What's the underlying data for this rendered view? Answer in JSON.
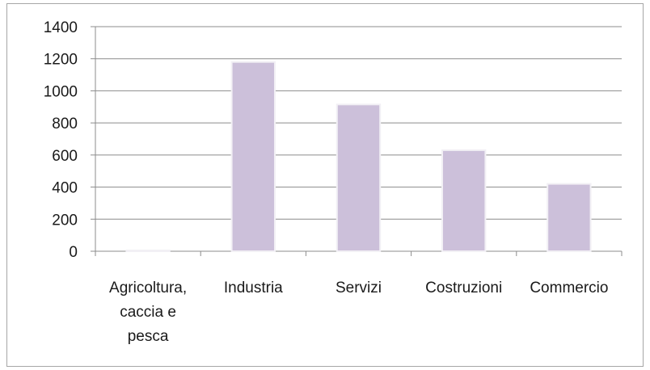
{
  "chart_data": {
    "type": "bar",
    "categories": [
      "Agricoltura, caccia e pesca",
      "Industria",
      "Servizi",
      "Costruzioni",
      "Commercio"
    ],
    "category_lines": [
      [
        "Agricoltura,",
        "caccia e",
        "pesca"
      ],
      [
        "Industria"
      ],
      [
        "Servizi"
      ],
      [
        "Costruzioni"
      ],
      [
        "Commercio"
      ]
    ],
    "values": [
      5,
      1180,
      915,
      630,
      420
    ],
    "ylim": [
      0,
      1400
    ],
    "yticks": [
      "0",
      "200",
      "400",
      "600",
      "800",
      "1000",
      "1200",
      "1400"
    ],
    "grid": true,
    "legend": "none",
    "title": "",
    "xlabel": "",
    "ylabel": "",
    "colors": {
      "bar_fill": "#ccc0da",
      "bar_edge": "#f2f0f5",
      "grid": "#8c8c8c",
      "axis": "#8c8c8c"
    }
  }
}
